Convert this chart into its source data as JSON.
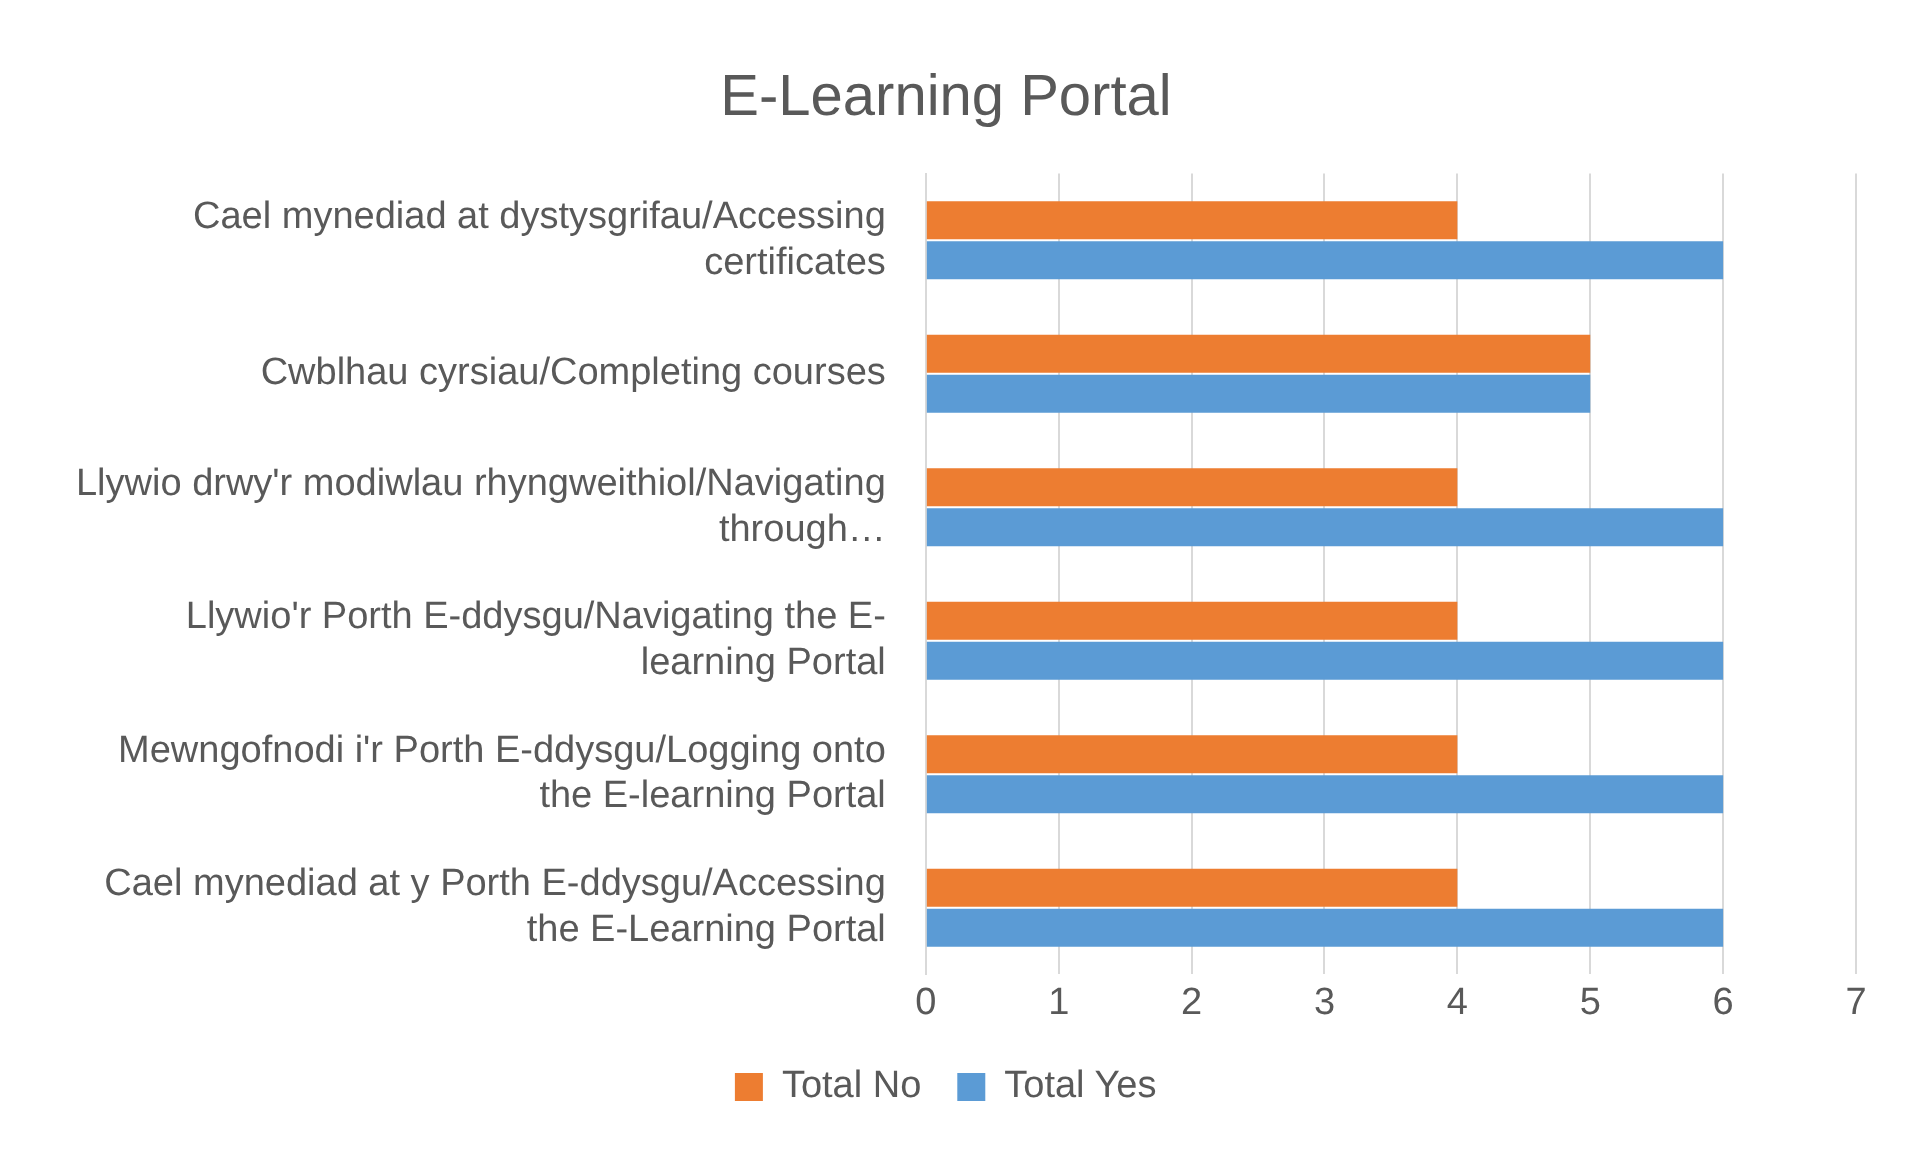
{
  "chart_data": {
    "type": "bar",
    "orientation": "horizontal",
    "title": "E-Learning Portal",
    "categories": [
      "Cael mynediad at dystysgrifau/Accessing certificates",
      "Cwblhau cyrsiau/Completing courses",
      "Llywio drwy'r modiwlau rhyngweithiol/Navigating through…",
      "Llywio'r Porth E-ddysgu/Navigating the E-learning Portal",
      "Mewngofnodi i'r Porth E-ddysgu/Logging onto the E-learning Portal",
      "Cael mynediad at y Porth E-ddysgu/Accessing the E-Learning Portal"
    ],
    "series": [
      {
        "name": "Total No",
        "color": "#ed7d31",
        "values": [
          4,
          5,
          4,
          4,
          4,
          4
        ]
      },
      {
        "name": "Total Yes",
        "color": "#5b9bd5",
        "values": [
          6,
          5,
          6,
          6,
          6,
          6
        ]
      }
    ],
    "xlim": [
      0,
      7
    ],
    "xticks": [
      0,
      1,
      2,
      3,
      4,
      5,
      6,
      7
    ],
    "grid": "x",
    "legend": "bottom"
  }
}
